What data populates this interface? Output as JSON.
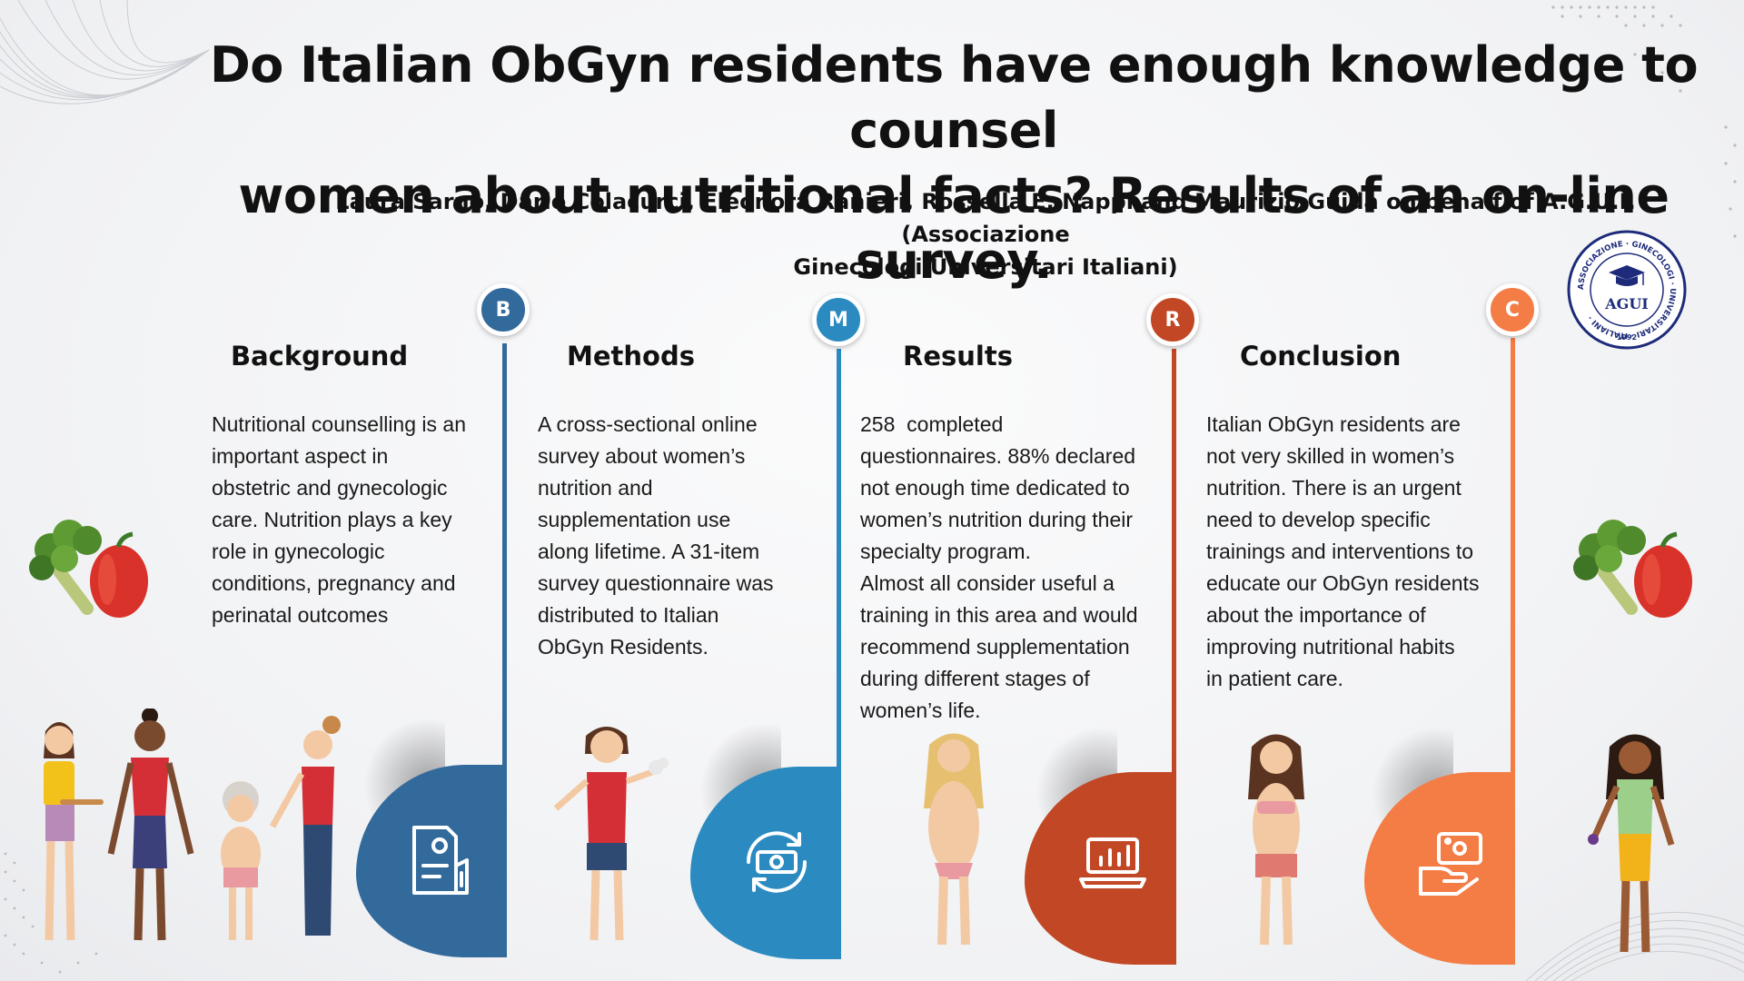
{
  "title": {
    "line1": "Do Italian ObGyn residents have enough knowledge to counsel",
    "line2": "women about nutritional facts? Results of an on-line survey."
  },
  "authors": {
    "line1": "Laura Sarno, Dario Colacurci, Eleonora Ranieri, Rossella E. Nappi and Maurizio Guida on behalf of A.G.U.I. (Associazione",
    "line2": "Ginecologi Universitari Italiani)"
  },
  "logo": {
    "ring_text": "ASSOCIAZIONE · GINECOLOGI · UNIVERSITARI · ITALIANI ·",
    "name": "AGUI",
    "year": "1992"
  },
  "colors": {
    "background": "#a31a30",
    "methods": "#2b8bc0",
    "results": "#c24725",
    "conclusion": "#f47c45"
  },
  "sections": {
    "background": {
      "letter": "B",
      "heading": "Background",
      "lines": [
        "Nutritional counselling is an",
        "important aspect in",
        "obstetric and gynecologic",
        "care. Nutrition plays a key",
        "role in gynecologic",
        "conditions, pregnancy and",
        "perinatal outcomes"
      ],
      "icon": "document-icon"
    },
    "methods": {
      "letter": "M",
      "heading": "Methods",
      "lines": [
        "A cross-sectional online",
        "survey about women’s",
        "nutrition and",
        "supplementation use",
        "along lifetime. A 31-item",
        "survey questionnaire was",
        "distributed to Italian",
        "ObGyn Residents."
      ],
      "icon": "money-cycle-icon"
    },
    "results": {
      "letter": "R",
      "heading": "Results",
      "lines": [
        "258  completed",
        "questionnaires. 88% declared",
        "not enough time dedicated to",
        "women’s nutrition during their",
        "specialty program.",
        "Almost all consider useful a",
        "training in this area and would",
        "recommend supplementation",
        "during different stages of",
        "women’s life."
      ],
      "icon": "laptop-chart-icon"
    },
    "conclusion": {
      "letter": "C",
      "heading": "Conclusion",
      "lines": [
        "Italian ObGyn residents are",
        "not very skilled in women’s",
        "nutrition. There is an urgent",
        "need to develop specific",
        "trainings and interventions to",
        "educate our ObGyn residents",
        "about the importance of",
        "improving nutritional habits",
        "in patient care."
      ],
      "icon": "hand-money-icon"
    }
  }
}
